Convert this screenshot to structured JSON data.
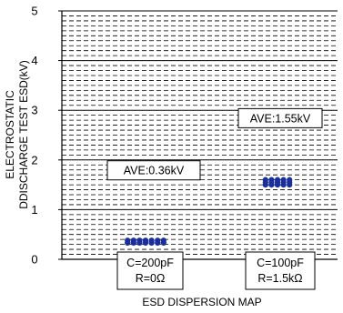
{
  "chart_data": {
    "type": "scatter",
    "title": "",
    "xlabel": "ESD DISPERSION MAP",
    "ylabel_lines": [
      "ELECTROSTATIC",
      "DDISCHARGE TEST ESD(kV)"
    ],
    "ylim": [
      0,
      5
    ],
    "yticks": [
      "0",
      "1",
      "2",
      "3",
      "4",
      "5"
    ],
    "grid": true,
    "categories": [
      {
        "lines": [
          "C=200pF",
          "R=0Ω"
        ]
      },
      {
        "lines": [
          "C=100pF",
          "R=1.5kΩ"
        ]
      }
    ],
    "series": [
      {
        "category": 0,
        "values": [
          0.33,
          0.33,
          0.33,
          0.33,
          0.33,
          0.33,
          0.33,
          0.38,
          0.38,
          0.38,
          0.38,
          0.38,
          0.38,
          0.38
        ]
      },
      {
        "category": 1,
        "values": [
          1.5,
          1.5,
          1.5,
          1.5,
          1.5,
          1.55,
          1.55,
          1.55,
          1.55,
          1.55,
          1.6,
          1.6,
          1.6,
          1.6,
          1.6
        ]
      }
    ],
    "annotations": [
      {
        "text": "AVE:0.36kV",
        "category": 0
      },
      {
        "text": "AVE:1.55kV",
        "category": 1
      }
    ],
    "marker_color": "#1a2f9c"
  }
}
